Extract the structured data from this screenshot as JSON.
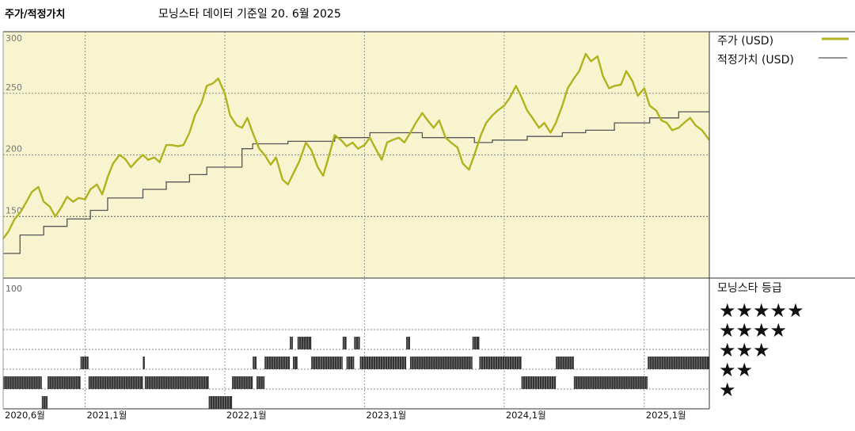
{
  "header": {
    "title": "주가/적정가치",
    "subtitle": "모닝스타 데이터 기준일 20. 6월 2025"
  },
  "legend": {
    "price_label": "주가 (USD)",
    "fair_label": "적정가치 (USD)",
    "rating_title": "모닝스타 등급",
    "stars": [
      "★★★★★",
      "★★★★",
      "★★★",
      "★★",
      "★"
    ]
  },
  "colors": {
    "price": "#b0b21e",
    "fair": "#555555",
    "panel_bg": "#f8f4cf",
    "rating_bar": "#333333"
  },
  "chart_data": [
    {
      "type": "line",
      "title": "주가/적정가치",
      "x_range": [
        "2020-06-01",
        "2025-06-20"
      ],
      "ylim": [
        100,
        300
      ],
      "y_ticks": [
        "300",
        "250",
        "200",
        "150",
        "100"
      ],
      "x_ticks": [
        "2020,6월",
        "2021,1월",
        "2022,1월",
        "2023,1월",
        "2024,1월",
        "2025,1월"
      ],
      "grid": true,
      "legend_position": "right",
      "series": [
        {
          "name": "주가 (USD)",
          "points": [
            [
              "2020-06-01",
              132
            ],
            [
              "2020-06-15",
              138
            ],
            [
              "2020-07-01",
              148
            ],
            [
              "2020-07-15",
              153
            ],
            [
              "2020-08-01",
              162
            ],
            [
              "2020-08-15",
              170
            ],
            [
              "2020-09-01",
              174
            ],
            [
              "2020-09-15",
              162
            ],
            [
              "2020-10-01",
              158
            ],
            [
              "2020-10-15",
              150
            ],
            [
              "2020-11-01",
              158
            ],
            [
              "2020-11-15",
              166
            ],
            [
              "2020-12-01",
              162
            ],
            [
              "2020-12-15",
              165
            ],
            [
              "2021-01-01",
              164
            ],
            [
              "2021-01-15",
              172
            ],
            [
              "2021-02-01",
              176
            ],
            [
              "2021-02-15",
              168
            ],
            [
              "2021-03-01",
              182
            ],
            [
              "2021-03-15",
              193
            ],
            [
              "2021-04-01",
              200
            ],
            [
              "2021-04-15",
              197
            ],
            [
              "2021-05-01",
              190
            ],
            [
              "2021-05-15",
              195
            ],
            [
              "2021-06-01",
              200
            ],
            [
              "2021-06-15",
              196
            ],
            [
              "2021-07-01",
              198
            ],
            [
              "2021-07-15",
              194
            ],
            [
              "2021-08-01",
              208
            ],
            [
              "2021-08-15",
              208
            ],
            [
              "2021-09-01",
              207
            ],
            [
              "2021-09-15",
              208
            ],
            [
              "2021-10-01",
              218
            ],
            [
              "2021-10-15",
              232
            ],
            [
              "2021-11-01",
              242
            ],
            [
              "2021-11-15",
              256
            ],
            [
              "2021-12-01",
              258
            ],
            [
              "2021-12-15",
              262
            ],
            [
              "2022-01-01",
              250
            ],
            [
              "2022-01-15",
              232
            ],
            [
              "2022-02-01",
              224
            ],
            [
              "2022-02-15",
              222
            ],
            [
              "2022-03-01",
              230
            ],
            [
              "2022-03-15",
              218
            ],
            [
              "2022-04-01",
              205
            ],
            [
              "2022-04-15",
              200
            ],
            [
              "2022-05-01",
              192
            ],
            [
              "2022-05-15",
              198
            ],
            [
              "2022-06-01",
              180
            ],
            [
              "2022-06-15",
              176
            ],
            [
              "2022-07-01",
              186
            ],
            [
              "2022-07-15",
              195
            ],
            [
              "2022-08-01",
              210
            ],
            [
              "2022-08-15",
              204
            ],
            [
              "2022-09-01",
              190
            ],
            [
              "2022-09-15",
              183
            ],
            [
              "2022-10-01",
              200
            ],
            [
              "2022-10-15",
              216
            ],
            [
              "2022-11-01",
              212
            ],
            [
              "2022-11-15",
              207
            ],
            [
              "2022-12-01",
              210
            ],
            [
              "2022-12-15",
              205
            ],
            [
              "2023-01-01",
              208
            ],
            [
              "2023-01-15",
              214
            ],
            [
              "2023-02-01",
              204
            ],
            [
              "2023-02-15",
              196
            ],
            [
              "2023-03-01",
              210
            ],
            [
              "2023-03-15",
              212
            ],
            [
              "2023-04-01",
              214
            ],
            [
              "2023-04-15",
              210
            ],
            [
              "2023-05-01",
              218
            ],
            [
              "2023-05-15",
              226
            ],
            [
              "2023-06-01",
              234
            ],
            [
              "2023-06-15",
              228
            ],
            [
              "2023-07-01",
              222
            ],
            [
              "2023-07-15",
              228
            ],
            [
              "2023-08-01",
              214
            ],
            [
              "2023-08-15",
              210
            ],
            [
              "2023-09-01",
              206
            ],
            [
              "2023-09-15",
              193
            ],
            [
              "2023-10-01",
              188
            ],
            [
              "2023-10-15",
              200
            ],
            [
              "2023-11-01",
              216
            ],
            [
              "2023-11-15",
              226
            ],
            [
              "2023-12-01",
              232
            ],
            [
              "2023-12-15",
              236
            ],
            [
              "2024-01-01",
              240
            ],
            [
              "2024-01-15",
              246
            ],
            [
              "2024-02-01",
              256
            ],
            [
              "2024-02-15",
              247
            ],
            [
              "2024-03-01",
              236
            ],
            [
              "2024-03-15",
              230
            ],
            [
              "2024-04-01",
              222
            ],
            [
              "2024-04-15",
              226
            ],
            [
              "2024-05-01",
              218
            ],
            [
              "2024-05-15",
              226
            ],
            [
              "2024-06-01",
              240
            ],
            [
              "2024-06-15",
              254
            ],
            [
              "2024-07-01",
              262
            ],
            [
              "2024-07-15",
              268
            ],
            [
              "2024-08-01",
              282
            ],
            [
              "2024-08-15",
              276
            ],
            [
              "2024-09-01",
              280
            ],
            [
              "2024-09-15",
              264
            ],
            [
              "2024-10-01",
              254
            ],
            [
              "2024-10-15",
              256
            ],
            [
              "2024-11-01",
              257
            ],
            [
              "2024-11-15",
              268
            ],
            [
              "2024-12-01",
              260
            ],
            [
              "2024-12-15",
              248
            ],
            [
              "2025-01-01",
              254
            ],
            [
              "2025-01-15",
              240
            ],
            [
              "2025-02-01",
              236
            ],
            [
              "2025-02-15",
              228
            ],
            [
              "2025-03-01",
              226
            ],
            [
              "2025-03-15",
              220
            ],
            [
              "2025-04-01",
              222
            ],
            [
              "2025-04-15",
              226
            ],
            [
              "2025-05-01",
              230
            ],
            [
              "2025-05-15",
              224
            ],
            [
              "2025-06-01",
              220
            ],
            [
              "2025-06-20",
              212
            ]
          ]
        },
        {
          "name": "적정가치 (USD)",
          "points": [
            [
              "2020-06-01",
              120
            ],
            [
              "2020-07-15",
              120
            ],
            [
              "2020-07-15",
              135
            ],
            [
              "2020-09-15",
              135
            ],
            [
              "2020-09-15",
              142
            ],
            [
              "2020-11-15",
              142
            ],
            [
              "2020-11-15",
              148
            ],
            [
              "2021-01-15",
              148
            ],
            [
              "2021-01-15",
              155
            ],
            [
              "2021-03-01",
              155
            ],
            [
              "2021-03-01",
              165
            ],
            [
              "2021-06-01",
              165
            ],
            [
              "2021-06-01",
              172
            ],
            [
              "2021-08-01",
              172
            ],
            [
              "2021-08-01",
              178
            ],
            [
              "2021-10-01",
              178
            ],
            [
              "2021-10-01",
              184
            ],
            [
              "2021-11-15",
              184
            ],
            [
              "2021-11-15",
              190
            ],
            [
              "2022-02-15",
              190
            ],
            [
              "2022-02-15",
              205
            ],
            [
              "2022-03-15",
              205
            ],
            [
              "2022-03-15",
              209
            ],
            [
              "2022-06-15",
              209
            ],
            [
              "2022-06-15",
              211
            ],
            [
              "2022-10-15",
              211
            ],
            [
              "2022-10-15",
              214
            ],
            [
              "2023-01-15",
              214
            ],
            [
              "2023-01-15",
              218
            ],
            [
              "2023-06-01",
              218
            ],
            [
              "2023-06-01",
              214
            ],
            [
              "2023-10-15",
              214
            ],
            [
              "2023-10-15",
              210
            ],
            [
              "2023-12-01",
              210
            ],
            [
              "2023-12-01",
              212
            ],
            [
              "2024-03-01",
              212
            ],
            [
              "2024-03-01",
              215
            ],
            [
              "2024-06-01",
              215
            ],
            [
              "2024-06-01",
              218
            ],
            [
              "2024-08-01",
              218
            ],
            [
              "2024-08-01",
              220
            ],
            [
              "2024-10-15",
              220
            ],
            [
              "2024-10-15",
              226
            ],
            [
              "2025-01-15",
              226
            ],
            [
              "2025-01-15",
              230
            ],
            [
              "2025-04-01",
              230
            ],
            [
              "2025-04-01",
              235
            ],
            [
              "2025-06-20",
              235
            ]
          ]
        }
      ]
    },
    {
      "type": "bar",
      "title": "모닝스타 등급",
      "levels": [
        5,
        4,
        3,
        2,
        1
      ],
      "rating_segments": [
        {
          "start": "2020-06-01",
          "end": "2020-09-10",
          "rating": 2
        },
        {
          "start": "2020-09-10",
          "end": "2020-09-25",
          "rating": 1
        },
        {
          "start": "2020-09-25",
          "end": "2020-12-20",
          "rating": 2
        },
        {
          "start": "2020-12-20",
          "end": "2021-01-10",
          "rating": 3
        },
        {
          "start": "2021-01-10",
          "end": "2021-06-01",
          "rating": 2
        },
        {
          "start": "2021-06-01",
          "end": "2021-06-06",
          "rating": 3
        },
        {
          "start": "2021-06-06",
          "end": "2021-11-20",
          "rating": 2
        },
        {
          "start": "2021-11-20",
          "end": "2022-01-20",
          "rating": 1
        },
        {
          "start": "2022-01-20",
          "end": "2022-03-15",
          "rating": 2
        },
        {
          "start": "2022-03-15",
          "end": "2022-03-25",
          "rating": 3
        },
        {
          "start": "2022-03-25",
          "end": "2022-04-15",
          "rating": 2
        },
        {
          "start": "2022-04-15",
          "end": "2022-06-20",
          "rating": 3
        },
        {
          "start": "2022-06-20",
          "end": "2022-06-28",
          "rating": 4
        },
        {
          "start": "2022-06-28",
          "end": "2022-07-10",
          "rating": 3
        },
        {
          "start": "2022-07-10",
          "end": "2022-08-15",
          "rating": 4
        },
        {
          "start": "2022-08-15",
          "end": "2022-09-10",
          "rating": 3
        },
        {
          "start": "2022-09-10",
          "end": "2022-11-05",
          "rating": 3
        },
        {
          "start": "2022-11-05",
          "end": "2022-11-15",
          "rating": 4
        },
        {
          "start": "2022-11-15",
          "end": "2022-12-05",
          "rating": 3
        },
        {
          "start": "2022-12-05",
          "end": "2022-12-20",
          "rating": 4
        },
        {
          "start": "2022-12-20",
          "end": "2023-04-20",
          "rating": 3
        },
        {
          "start": "2023-04-20",
          "end": "2023-04-30",
          "rating": 4
        },
        {
          "start": "2023-04-30",
          "end": "2023-10-10",
          "rating": 3
        },
        {
          "start": "2023-10-10",
          "end": "2023-10-28",
          "rating": 4
        },
        {
          "start": "2023-10-28",
          "end": "2024-02-15",
          "rating": 3
        },
        {
          "start": "2024-02-15",
          "end": "2024-05-15",
          "rating": 2
        },
        {
          "start": "2024-05-15",
          "end": "2024-07-01",
          "rating": 3
        },
        {
          "start": "2024-07-01",
          "end": "2024-07-20",
          "rating": 2
        },
        {
          "start": "2024-07-20",
          "end": "2025-01-10",
          "rating": 2
        },
        {
          "start": "2025-01-10",
          "end": "2025-06-20",
          "rating": 3
        }
      ]
    }
  ]
}
